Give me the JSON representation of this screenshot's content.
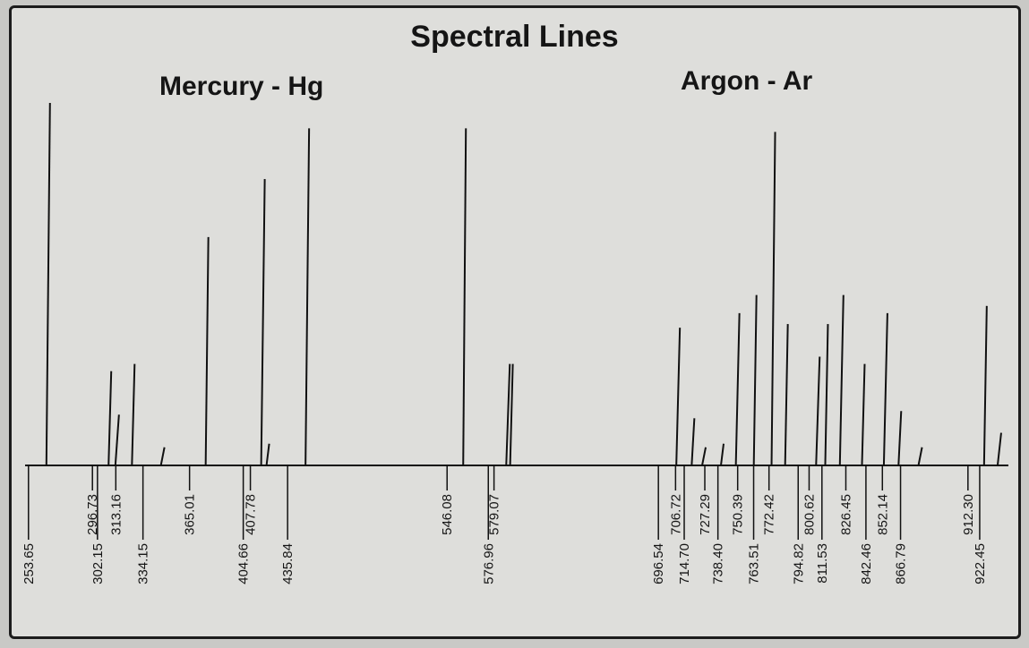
{
  "chart_data": {
    "type": "bar",
    "title": "Spectral Lines",
    "groups": [
      {
        "label": "Mercury - Hg"
      },
      {
        "label": "Argon - Ar"
      }
    ],
    "xlim": [
      250,
      925
    ],
    "ylim": [
      0,
      1
    ],
    "grid": false,
    "lines": [
      {
        "label": "253.65",
        "x": 253.65,
        "intensity": 1.0,
        "label_pos": "low"
      },
      {
        "label": "296.73",
        "x": 296.73,
        "intensity": 0.26,
        "label_pos": "high"
      },
      {
        "label": "302.15",
        "x": 302.15,
        "intensity": 0.14,
        "label_pos": "low"
      },
      {
        "label": "313.16",
        "x": 313.16,
        "intensity": 0.28,
        "label_pos": "high"
      },
      {
        "label": "334.15",
        "x": 334.15,
        "intensity": 0.05,
        "label_pos": "low"
      },
      {
        "label": "365.01",
        "x": 365.01,
        "intensity": 0.63,
        "label_pos": "high"
      },
      {
        "label": "404.66",
        "x": 404.66,
        "intensity": 0.79,
        "label_pos": "low"
      },
      {
        "label": "407.78",
        "x": 407.78,
        "intensity": 0.06,
        "label_pos": "high"
      },
      {
        "label": "435.84",
        "x": 435.84,
        "intensity": 0.93,
        "label_pos": "low"
      },
      {
        "label": "546.08",
        "x": 546.08,
        "intensity": 0.93,
        "label_pos": "high"
      },
      {
        "label": "576.96",
        "x": 576.96,
        "intensity": 0.28,
        "label_pos": "low"
      },
      {
        "label": "579.07",
        "x": 579.07,
        "intensity": 0.28,
        "label_pos": "high"
      },
      {
        "label": "696.54",
        "x": 696.54,
        "intensity": 0.38,
        "label_pos": "low"
      },
      {
        "label": "706.72",
        "x": 706.72,
        "intensity": 0.13,
        "label_pos": "high"
      },
      {
        "label": "714.70",
        "x": 714.7,
        "intensity": 0.05,
        "label_pos": "low"
      },
      {
        "label": "727.29",
        "x": 727.29,
        "intensity": 0.06,
        "label_pos": "high"
      },
      {
        "label": "738.40",
        "x": 738.4,
        "intensity": 0.42,
        "label_pos": "low"
      },
      {
        "label": "750.39",
        "x": 750.39,
        "intensity": 0.47,
        "label_pos": "high"
      },
      {
        "label": "763.51",
        "x": 763.51,
        "intensity": 0.92,
        "label_pos": "low"
      },
      {
        "label": "772.42",
        "x": 772.42,
        "intensity": 0.39,
        "label_pos": "high"
      },
      {
        "label": "794.82",
        "x": 794.82,
        "intensity": 0.3,
        "label_pos": "low"
      },
      {
        "label": "800.62",
        "x": 800.62,
        "intensity": 0.39,
        "label_pos": "high"
      },
      {
        "label": "811.53",
        "x": 811.53,
        "intensity": 0.47,
        "label_pos": "low"
      },
      {
        "label": "826.45",
        "x": 826.45,
        "intensity": 0.28,
        "label_pos": "high"
      },
      {
        "label": "842.46",
        "x": 842.46,
        "intensity": 0.42,
        "label_pos": "low"
      },
      {
        "label": "852.14",
        "x": 852.14,
        "intensity": 0.15,
        "label_pos": "high"
      },
      {
        "label": "866.79",
        "x": 866.79,
        "intensity": 0.05,
        "label_pos": "low"
      },
      {
        "label": "912.30",
        "x": 912.3,
        "intensity": 0.44,
        "label_pos": "high"
      },
      {
        "label": "922.45",
        "x": 922.45,
        "intensity": 0.09,
        "label_pos": "low"
      }
    ]
  },
  "colors": {
    "background": "#dededb",
    "line": "#111111",
    "text": "#151515"
  }
}
